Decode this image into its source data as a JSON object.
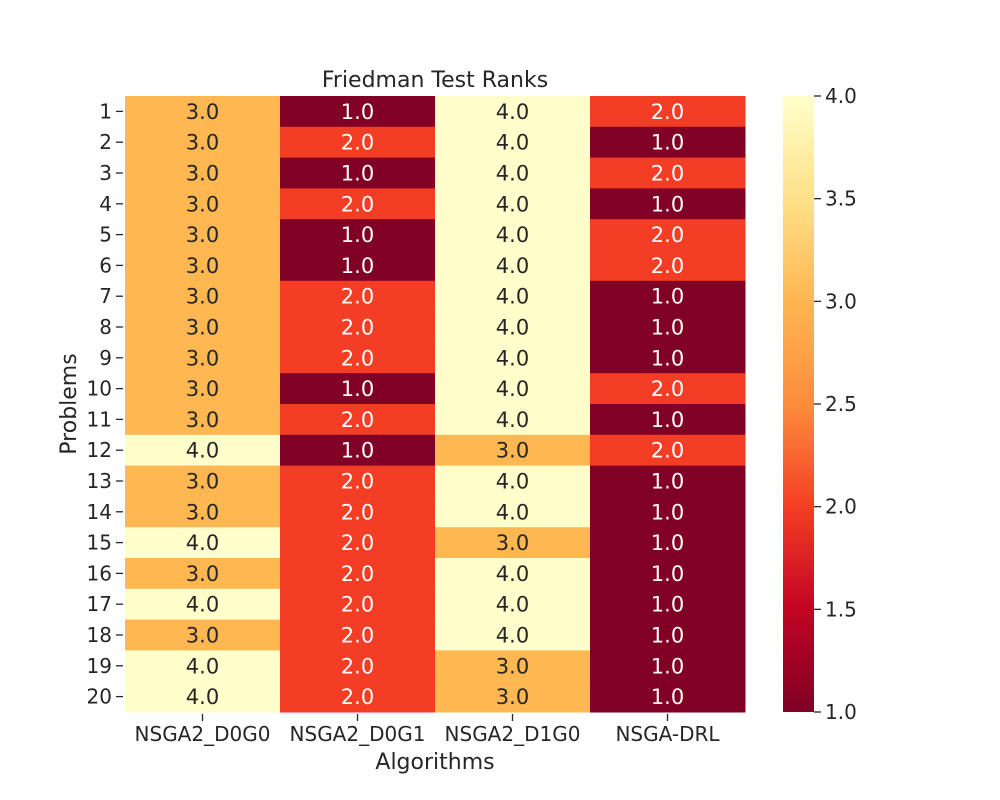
{
  "chart_data": {
    "type": "heatmap",
    "title": "Friedman Test Ranks",
    "xlabel": "Algorithms",
    "ylabel": "Problems",
    "columns": [
      "NSGA2_D0G0",
      "NSGA2_D0G1",
      "NSGA2_D1G0",
      "NSGA-DRL"
    ],
    "rows": [
      "1",
      "2",
      "3",
      "4",
      "5",
      "6",
      "7",
      "8",
      "9",
      "10",
      "11",
      "12",
      "13",
      "14",
      "15",
      "16",
      "17",
      "18",
      "19",
      "20"
    ],
    "values": [
      [
        3.0,
        1.0,
        4.0,
        2.0
      ],
      [
        3.0,
        2.0,
        4.0,
        1.0
      ],
      [
        3.0,
        1.0,
        4.0,
        2.0
      ],
      [
        3.0,
        2.0,
        4.0,
        1.0
      ],
      [
        3.0,
        1.0,
        4.0,
        2.0
      ],
      [
        3.0,
        1.0,
        4.0,
        2.0
      ],
      [
        3.0,
        2.0,
        4.0,
        1.0
      ],
      [
        3.0,
        2.0,
        4.0,
        1.0
      ],
      [
        3.0,
        2.0,
        4.0,
        1.0
      ],
      [
        3.0,
        1.0,
        4.0,
        2.0
      ],
      [
        3.0,
        2.0,
        4.0,
        1.0
      ],
      [
        4.0,
        1.0,
        3.0,
        2.0
      ],
      [
        3.0,
        2.0,
        4.0,
        1.0
      ],
      [
        3.0,
        2.0,
        4.0,
        1.0
      ],
      [
        4.0,
        2.0,
        3.0,
        1.0
      ],
      [
        3.0,
        2.0,
        4.0,
        1.0
      ],
      [
        4.0,
        2.0,
        4.0,
        1.0
      ],
      [
        3.0,
        2.0,
        4.0,
        1.0
      ],
      [
        4.0,
        2.0,
        3.0,
        1.0
      ],
      [
        4.0,
        2.0,
        3.0,
        1.0
      ]
    ],
    "colormap": "YlOrRd_r",
    "colors": {
      "1.0": "#800026",
      "2.0": "#f43d25",
      "3.0": "#feb751",
      "4.0": "#ffffcc"
    },
    "colorbar": {
      "range": [
        1.0,
        4.0
      ],
      "ticks": [
        "1.0",
        "1.5",
        "2.0",
        "2.5",
        "3.0",
        "3.5",
        "4.0"
      ]
    }
  }
}
